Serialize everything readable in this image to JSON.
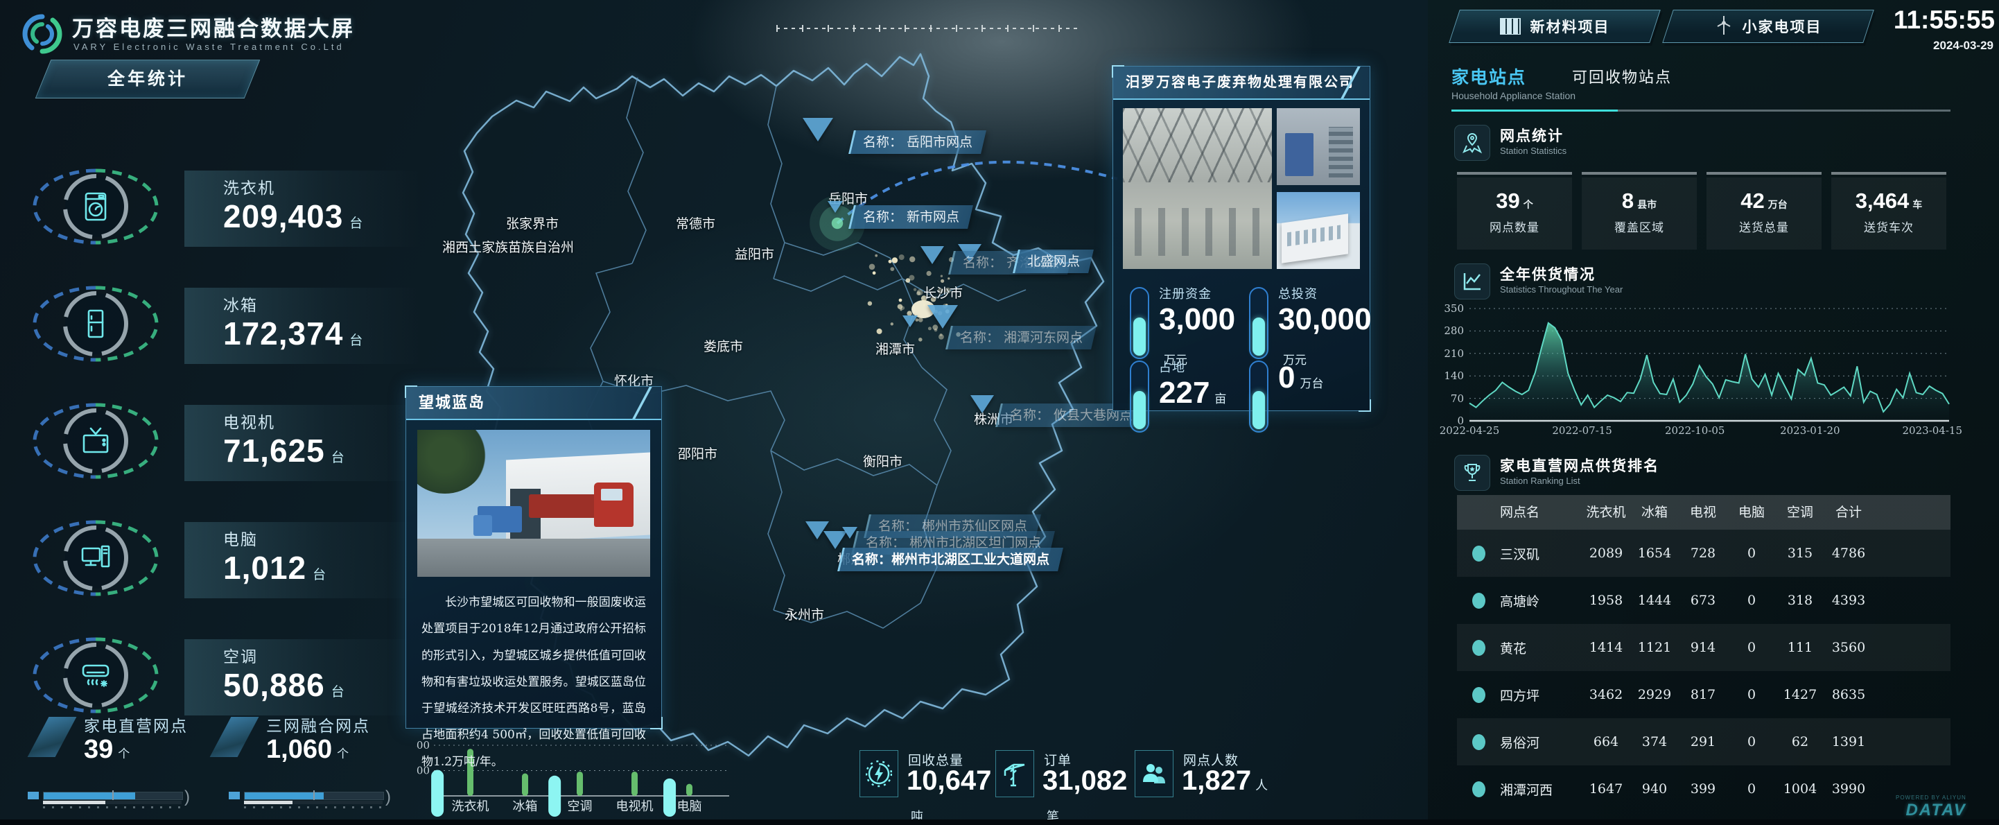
{
  "header": {
    "title": "万容电废三网融合数据大屏",
    "subtitle": "VARY Electronic Waste Treatment Co.Ltd",
    "year_button": "全年统计"
  },
  "left_panel": {
    "stats": [
      {
        "label": "洗衣机",
        "value": "209,403",
        "unit": "台",
        "icon": "washing-machine-icon"
      },
      {
        "label": "冰箱",
        "value": "172,374",
        "unit": "台",
        "icon": "fridge-icon"
      },
      {
        "label": "电视机",
        "value": "71,625",
        "unit": "台",
        "icon": "tv-icon"
      },
      {
        "label": "电脑",
        "value": "1,012",
        "unit": "台",
        "icon": "computer-icon"
      },
      {
        "label": "空调",
        "value": "50,886",
        "unit": "台",
        "icon": "air-conditioner-icon"
      }
    ],
    "bottom_stats": [
      {
        "label": "家电直营网点",
        "value": "39",
        "unit": "个",
        "progress": 0.66,
        "progress2": 0.45
      },
      {
        "label": "三网融合网点",
        "value": "1,060",
        "unit": "个",
        "progress": 0.57,
        "progress2": 0.35
      }
    ]
  },
  "map": {
    "cities": [
      "张家界市",
      "常德市",
      "岳阳市",
      "湘西土家族苗族自治州",
      "益阳市",
      "长沙市",
      "娄底市",
      "湘潭市",
      "怀化市",
      "邵阳市",
      "衡阳市",
      "永州市",
      "株洲市",
      "郴州市"
    ],
    "badges": [
      {
        "text": "名称：  岳阳市网点"
      },
      {
        "text": "名称：  新市网点"
      },
      {
        "text": "名称：  齐洺网点"
      },
      {
        "text": "北盛网点"
      },
      {
        "text": "名称：  湘潭河东网点"
      },
      {
        "text": "名称：  攸县大巷网点"
      },
      {
        "text": "名称：  郴州市苏仙区网点"
      },
      {
        "text": "名称：  郴州市北湖区坦门网点"
      },
      {
        "text": "名称：郴州市北湖区工业大道网点"
      }
    ]
  },
  "wangcheng_popup": {
    "title": "望城蓝岛",
    "description": "长沙市望城区可回收物和一般固废收运处置项目于2018年12月通过政府公开招标的形式引入，为望城区城乡提供低值可回收物和有害垃圾收运处置服务。望城区蓝岛位于望城经济技术开发区旺旺西路8号，蓝岛占地面积约4 500㎡，回收处置低值可回收物1.2万吨/年。"
  },
  "miluo_popup": {
    "title": "汨罗万容电子废弃物处理有限公司",
    "stats": [
      {
        "label": "注册资金",
        "value": "3,000",
        "unit": "万元"
      },
      {
        "label": "总投资",
        "value": "30,000",
        "unit": "万元"
      },
      {
        "label": "占地",
        "value": "227",
        "unit": "亩"
      },
      {
        "label": "",
        "value": "0",
        "unit": "万台"
      }
    ]
  },
  "bottom_summary": [
    {
      "label": "回收总量",
      "value": "10,647",
      "unit": "吨",
      "icon": "recycle-energy-icon"
    },
    {
      "label": "订单",
      "value": "31,082",
      "unit": "笔",
      "icon": "crane-icon"
    },
    {
      "label": "网点人数",
      "value": "1,827",
      "unit": "人",
      "icon": "people-icon"
    }
  ],
  "right_panel": {
    "tabs": [
      {
        "label": "新材料项目",
        "icon": "solar-panel-icon"
      },
      {
        "label": "小家电项目",
        "icon": "wind-turbine-icon"
      }
    ],
    "clock": {
      "time": "11:55:55",
      "date": "2024-03-29"
    },
    "station_tabs": {
      "active": "家电站点",
      "inactive": "可回收物站点",
      "subtitle": "Household Appliance Station"
    },
    "station_stats": {
      "title": "网点统计",
      "subtitle": "Station Statistics",
      "cards": [
        {
          "value": "39",
          "unit": "个",
          "label": "网点数量"
        },
        {
          "value": "8",
          "unit": "县市",
          "label": "覆盖区域"
        },
        {
          "value": "42",
          "unit": "万台",
          "label": "送货总量"
        },
        {
          "value": "3,464",
          "unit": "车",
          "label": "送货车次"
        }
      ]
    },
    "supply_section": {
      "title": "全年供货情况",
      "subtitle": "Statistics Throughout The Year"
    },
    "ranking": {
      "title": "家电直营网点供货排名",
      "subtitle": "Station Ranking List",
      "columns": [
        "网点名",
        "洗衣机",
        "冰箱",
        "电视",
        "电脑",
        "空调",
        "合计"
      ],
      "rows": [
        {
          "name": "三汊矶",
          "values": [
            "2089",
            "1654",
            "728",
            "0",
            "315",
            "4786"
          ]
        },
        {
          "name": "高塘岭",
          "values": [
            "1958",
            "1444",
            "673",
            "0",
            "318",
            "4393"
          ]
        },
        {
          "name": "黄花",
          "values": [
            "1414",
            "1121",
            "914",
            "0",
            "111",
            "3560"
          ]
        },
        {
          "name": "四方坪",
          "values": [
            "3462",
            "2929",
            "817",
            "0",
            "1427",
            "8635"
          ]
        },
        {
          "name": "易俗河",
          "values": [
            "664",
            "374",
            "291",
            "0",
            "62",
            "1391"
          ]
        },
        {
          "name": "湘潭河西",
          "values": [
            "1647",
            "940",
            "399",
            "0",
            "1004",
            "3990"
          ]
        }
      ]
    }
  },
  "footer": {
    "powered_by": "POWERED BY ALIYUN",
    "brand": "DATAV"
  },
  "chart_data": [
    {
      "id": "bottom_recycle_bar",
      "type": "bar",
      "categories": [
        "洗衣机",
        "冰箱",
        "空调",
        "电视机",
        "电脑"
      ],
      "values": [
        372,
        178,
        192,
        192,
        95
      ],
      "overlay_series": {
        "name": "scroll-highlight",
        "color": "#8df5f2",
        "positions": [
          -0.6,
          1.54,
          3.64
        ],
        "values": [
          205,
          160,
          138
        ],
        "extends_below_axis": true
      },
      "ylim": [
        0,
        400
      ],
      "yticks": [
        200,
        400
      ],
      "bar_color": "#66bd6d",
      "grid": "dotted"
    },
    {
      "id": "yearly_supply",
      "type": "area",
      "title": "全年供货情况",
      "values": [
        55,
        42,
        62,
        80,
        95,
        120,
        105,
        92,
        82,
        95,
        150,
        230,
        305,
        290,
        252,
        148,
        95,
        50,
        80,
        42,
        62,
        80,
        72,
        60,
        88,
        86,
        130,
        205,
        120,
        85,
        82,
        130,
        58,
        80,
        115,
        172,
        138,
        115,
        72,
        128,
        122,
        118,
        208,
        130,
        105,
        145,
        80,
        148,
        108,
        68,
        160,
        142,
        195,
        118,
        112,
        80,
        92,
        105,
        78,
        170,
        58,
        92,
        82,
        28,
        52,
        98,
        72,
        148,
        88,
        82,
        108,
        95,
        85,
        52
      ],
      "ylim": [
        0,
        350
      ],
      "yticks": [
        0,
        70,
        140,
        210,
        280,
        350
      ],
      "x_tick_labels": [
        "2022-04-25",
        "2022-07-15",
        "2022-10-05",
        "2023-01-20",
        "2023-04-15"
      ],
      "x_tick_positions": [
        0,
        0.235,
        0.47,
        0.71,
        0.965
      ],
      "line_color": "#5fd9c4",
      "grid": "dotted"
    }
  ]
}
